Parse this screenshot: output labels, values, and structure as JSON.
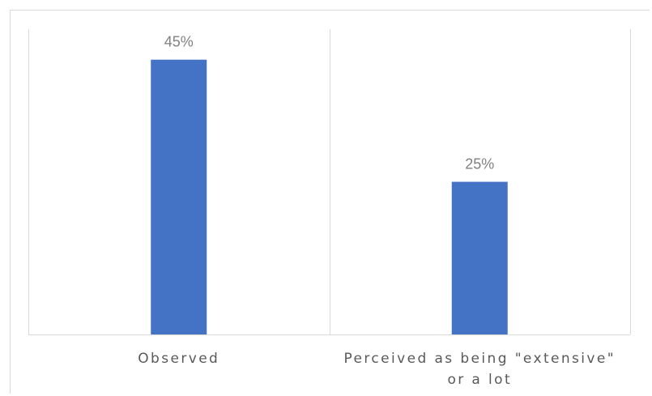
{
  "chart_data": {
    "type": "bar",
    "title": "",
    "xlabel": "",
    "ylabel": "",
    "categories": [
      "Observed",
      "Perceived as being \"extensive\" or a lot"
    ],
    "category_lines": [
      [
        "Observed"
      ],
      [
        "Perceived as being \"extensive\"",
        "or a lot"
      ]
    ],
    "values": [
      45,
      25
    ],
    "data_labels": [
      "45%",
      "25%"
    ],
    "ylim": [
      0,
      50
    ],
    "grid": false,
    "legend": "none",
    "bar_color": "#4472C4",
    "axis_color": "#D9D9D9",
    "label_color": "#595959",
    "data_label_color": "#808080"
  }
}
